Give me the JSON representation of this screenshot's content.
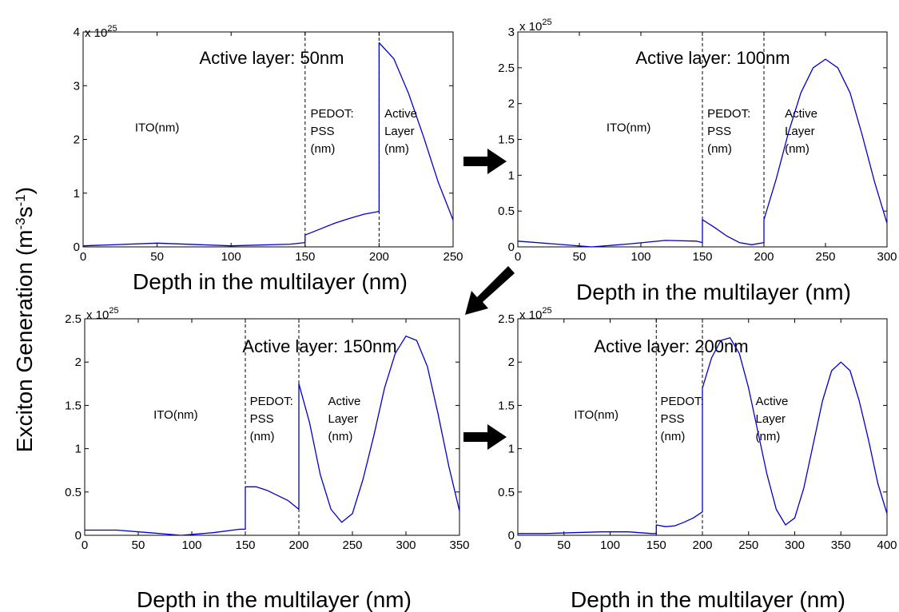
{
  "figure": {
    "ylabel_prefix": "Exciton Generation (m",
    "ylabel_sup1": "-3",
    "ylabel_mid": "s",
    "ylabel_sup2": "-1",
    "ylabel_suffix": ")",
    "exp_base": "x 10",
    "exp_power": "25",
    "line_color": "#0000cc"
  },
  "chart_data": [
    {
      "type": "line",
      "title": "Active layer: 50nm",
      "xlabel": "Depth in the multilayer (nm)",
      "xlim": [
        0,
        250
      ],
      "ylim": [
        0,
        4
      ],
      "xticks": [
        "0",
        "50",
        "100",
        "150",
        "200",
        "250"
      ],
      "yticks": [
        "0",
        "1",
        "2",
        "3",
        "4"
      ],
      "dividers": [
        150,
        200
      ],
      "regions": [
        {
          "x": 50,
          "lines": [
            "ITO(nm)"
          ]
        },
        {
          "x": 152,
          "lines": [
            "PEDOT:",
            "PSS",
            "(nm)"
          ]
        },
        {
          "x": 202,
          "lines": [
            "Active",
            "Layer",
            "(nm)"
          ]
        }
      ],
      "series": [
        {
          "x": [
            0,
            50,
            100,
            140,
            150,
            150,
            160,
            170,
            180,
            190,
            200,
            200,
            210,
            220,
            230,
            240,
            250
          ],
          "y": [
            0.02,
            0.07,
            0.02,
            0.05,
            0.08,
            0.22,
            0.33,
            0.44,
            0.53,
            0.61,
            0.66,
            3.8,
            3.5,
            2.85,
            2.05,
            1.2,
            0.5
          ]
        }
      ]
    },
    {
      "type": "line",
      "title": "Active layer: 100nm",
      "xlabel": "Depth in the multilayer (nm)",
      "xlim": [
        0,
        300
      ],
      "ylim": [
        0,
        3
      ],
      "xticks": [
        "0",
        "50",
        "100",
        "150",
        "200",
        "250",
        "300"
      ],
      "yticks": [
        "0",
        "0.5",
        "1",
        "1.5",
        "2",
        "2.5",
        "3"
      ],
      "dividers": [
        150,
        200
      ],
      "regions": [
        {
          "x": 90,
          "lines": [
            "ITO(nm)"
          ]
        },
        {
          "x": 152,
          "lines": [
            "PEDOT:",
            "PSS",
            "(nm)"
          ]
        },
        {
          "x": 215,
          "lines": [
            "Active",
            "Layer",
            "(nm)"
          ]
        }
      ],
      "series": [
        {
          "x": [
            0,
            30,
            60,
            90,
            120,
            145,
            150,
            150,
            160,
            170,
            180,
            190,
            200,
            200,
            210,
            220,
            230,
            240,
            250,
            260,
            270,
            280,
            290,
            300
          ],
          "y": [
            0.08,
            0.04,
            0.0,
            0.04,
            0.09,
            0.08,
            0.06,
            0.38,
            0.27,
            0.15,
            0.06,
            0.03,
            0.06,
            0.38,
            0.95,
            1.6,
            2.15,
            2.5,
            2.62,
            2.5,
            2.15,
            1.55,
            0.9,
            0.33
          ]
        }
      ]
    },
    {
      "type": "line",
      "title": "Active layer: 150nm",
      "xlabel": "Depth in the multilayer (nm)",
      "xlim": [
        0,
        350
      ],
      "ylim": [
        0,
        2.5
      ],
      "xticks": [
        "0",
        "50",
        "100",
        "150",
        "200",
        "250",
        "300",
        "350"
      ],
      "yticks": [
        "0",
        "0.5",
        "1",
        "1.5",
        "2",
        "2.5"
      ],
      "dividers": [
        150,
        200
      ],
      "regions": [
        {
          "x": 85,
          "lines": [
            "ITO(nm)"
          ]
        },
        {
          "x": 152,
          "lines": [
            "PEDOT:",
            "PSS",
            "(nm)"
          ]
        },
        {
          "x": 225,
          "lines": [
            "Active",
            "Layer",
            "(nm)"
          ]
        }
      ],
      "series": [
        {
          "x": [
            0,
            30,
            60,
            90,
            120,
            145,
            150,
            150,
            160,
            170,
            180,
            190,
            200,
            200,
            210,
            220,
            230,
            240,
            250,
            260,
            270,
            280,
            290,
            300,
            310,
            320,
            330,
            340,
            350
          ],
          "y": [
            0.06,
            0.06,
            0.03,
            0.0,
            0.03,
            0.07,
            0.07,
            0.56,
            0.56,
            0.52,
            0.46,
            0.4,
            0.3,
            1.75,
            1.3,
            0.7,
            0.3,
            0.15,
            0.25,
            0.65,
            1.15,
            1.7,
            2.1,
            2.3,
            2.25,
            1.95,
            1.4,
            0.8,
            0.28
          ]
        }
      ]
    },
    {
      "type": "line",
      "title": "Active layer: 200nm",
      "xlabel": "Depth in the multilayer (nm)",
      "xlim": [
        0,
        400
      ],
      "ylim": [
        0,
        2.5
      ],
      "xticks": [
        "0",
        "50",
        "100",
        "150",
        "200",
        "250",
        "300",
        "350",
        "400"
      ],
      "yticks": [
        "0",
        "0.5",
        "1",
        "1.5",
        "2",
        "2.5"
      ],
      "dividers": [
        150,
        200
      ],
      "regions": [
        {
          "x": 85,
          "lines": [
            "ITO(nm)"
          ]
        },
        {
          "x": 152,
          "lines": [
            "PEDOT:",
            "PSS",
            "(nm)"
          ]
        },
        {
          "x": 255,
          "lines": [
            "Active",
            "Layer",
            "(nm)"
          ]
        }
      ],
      "series": [
        {
          "x": [
            0,
            30,
            60,
            90,
            120,
            145,
            150,
            150,
            160,
            170,
            180,
            190,
            200,
            200,
            210,
            220,
            230,
            240,
            250,
            260,
            270,
            280,
            290,
            300,
            310,
            320,
            330,
            340,
            350,
            360,
            370,
            380,
            390,
            400
          ],
          "y": [
            0.02,
            0.02,
            0.03,
            0.04,
            0.04,
            0.02,
            0.02,
            0.12,
            0.1,
            0.11,
            0.15,
            0.2,
            0.27,
            1.7,
            2.05,
            2.25,
            2.28,
            2.1,
            1.7,
            1.2,
            0.7,
            0.3,
            0.12,
            0.2,
            0.55,
            1.05,
            1.55,
            1.9,
            2.0,
            1.9,
            1.55,
            1.1,
            0.6,
            0.25
          ]
        }
      ]
    }
  ]
}
